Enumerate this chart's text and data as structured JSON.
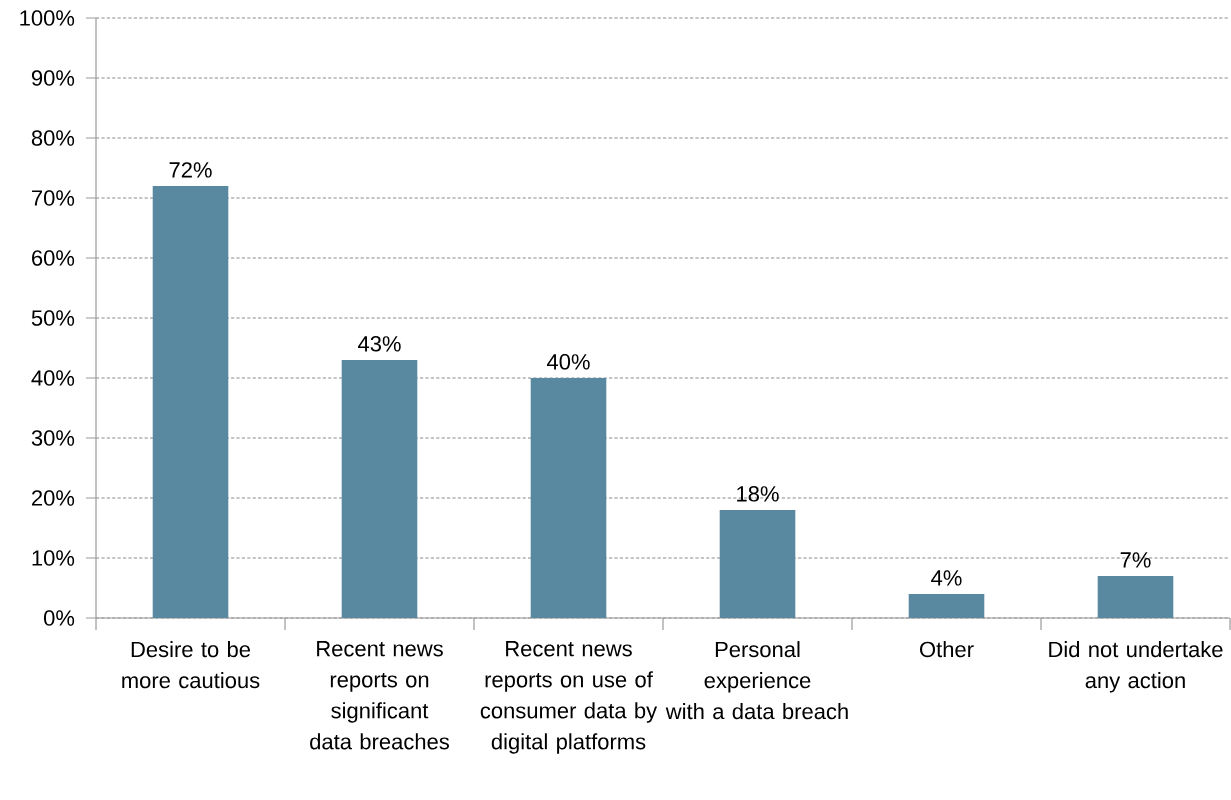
{
  "chart_data": {
    "type": "bar",
    "categories": [
      "Desire to be more cautious",
      "Recent news reports on significant data breaches",
      "Recent news reports on use of consumer data by digital platforms",
      "Personal experience with a data breach",
      "Other",
      "Did not undertake any action"
    ],
    "values": [
      72,
      43,
      40,
      18,
      4,
      7
    ],
    "value_labels": [
      "72%",
      "43%",
      "40%",
      "18%",
      "4%",
      "7%"
    ],
    "color": "#5889a0",
    "ylim": [
      0,
      100
    ],
    "yticks": [
      {
        "value": 0,
        "label": "0%"
      },
      {
        "value": 10,
        "label": "10%"
      },
      {
        "value": 20,
        "label": "20%"
      },
      {
        "value": 30,
        "label": "30%"
      },
      {
        "value": 40,
        "label": "40%"
      },
      {
        "value": 50,
        "label": "50%"
      },
      {
        "value": 60,
        "label": "60%"
      },
      {
        "value": 70,
        "label": "70%"
      },
      {
        "value": 80,
        "label": "80%"
      },
      {
        "value": 90,
        "label": "90%"
      },
      {
        "value": 100,
        "label": "100%"
      }
    ],
    "grid": "y"
  }
}
